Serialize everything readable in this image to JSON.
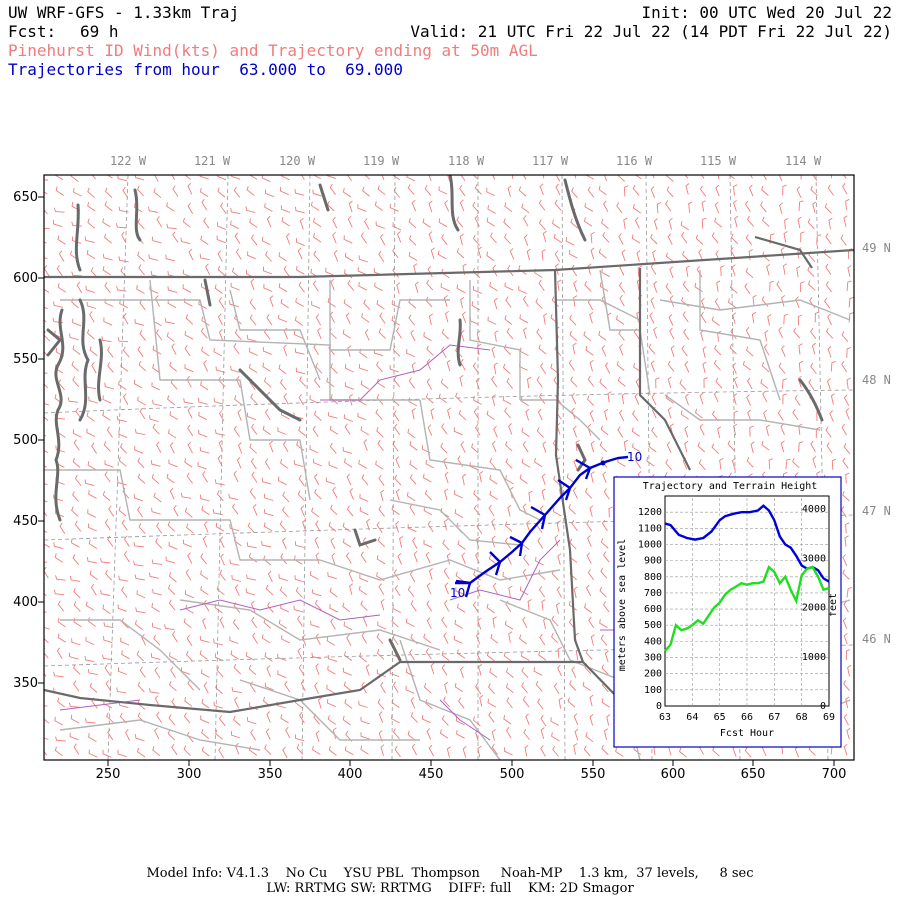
{
  "header": {
    "title": "UW WRF-GFS - 1.33km Traj",
    "init": "Init: 00 UTC Wed 20 Jul 22",
    "fcst_label": "Fcst:",
    "fcst_value": "69 h",
    "valid": "Valid: 21 UTC Fri 22 Jul 22 (14 PDT Fri 22 Jul 22)",
    "subtitle": "Pinehurst ID Wind(kts) and Trajectory ending at 50m AGL",
    "traj_hours": "Trajectories from hour  63.000 to  69.000"
  },
  "map": {
    "lon_labels": [
      "122 W",
      "121 W",
      "120 W",
      "119 W",
      "118 W",
      "117 W",
      "116 W",
      "115 W",
      "114 W"
    ],
    "lat_labels": [
      "49 N",
      "48 N",
      "47 N",
      "46 N"
    ],
    "y_ticks": [
      "650",
      "600",
      "550",
      "500",
      "450",
      "400",
      "350"
    ],
    "x_ticks": [
      "250",
      "300",
      "350",
      "400",
      "450",
      "500",
      "550",
      "600",
      "650",
      "700"
    ],
    "trajectory_start_label": "10",
    "trajectory_end_label": "10",
    "colors": {
      "wind_barb": "#f07c7c",
      "trajectory": "#0000cc",
      "state_border": "#707070",
      "county": "#b0b0b0",
      "river": "#b060c0"
    }
  },
  "inset": {
    "title": "Trajectory and Terrain Height",
    "y_label_left": "meters above sea level",
    "y_label_right": "feet",
    "x_label": "Fcst Hour",
    "left_ticks": [
      "1200",
      "1100",
      "1000",
      "900",
      "800",
      "700",
      "600",
      "500",
      "400",
      "300",
      "200",
      "100",
      "0"
    ],
    "right_ticks": [
      "4000",
      "3000",
      "2000",
      "1000",
      "0"
    ],
    "x_ticks": [
      "63",
      "64",
      "65",
      "66",
      "67",
      "68",
      "69"
    ]
  },
  "chart_data": {
    "type": "line",
    "title": "Trajectory and Terrain Height",
    "xlabel": "Fcst Hour",
    "ylabel": "meters above sea level",
    "xlim": [
      63,
      69
    ],
    "ylim": [
      0,
      1300
    ],
    "series": [
      {
        "name": "",
        "color": "#0000dd",
        "x": [
          63.0,
          63.2,
          63.5,
          63.8,
          64.1,
          64.4,
          64.7,
          65.0,
          65.2,
          65.5,
          65.8,
          66.1,
          66.4,
          66.6,
          66.8,
          67.0,
          67.2,
          67.4,
          67.6,
          67.8,
          68.0,
          68.2,
          68.4,
          68.6,
          68.8,
          69.0
        ],
        "y": [
          1130,
          1120,
          1060,
          1040,
          1030,
          1040,
          1080,
          1150,
          1175,
          1190,
          1200,
          1200,
          1210,
          1240,
          1210,
          1150,
          1050,
          1000,
          980,
          930,
          870,
          850,
          860,
          840,
          790,
          770
        ]
      },
      {
        "name": "",
        "color": "#22dd22",
        "x": [
          63.0,
          63.2,
          63.4,
          63.6,
          63.8,
          64.0,
          64.2,
          64.4,
          64.6,
          64.8,
          65.0,
          65.2,
          65.4,
          65.6,
          65.8,
          66.0,
          66.2,
          66.4,
          66.6,
          66.8,
          67.0,
          67.2,
          67.4,
          67.6,
          67.8,
          68.0,
          68.2,
          68.4,
          68.6,
          68.8,
          69.0
        ],
        "y": [
          340,
          380,
          500,
          470,
          480,
          500,
          530,
          510,
          560,
          610,
          640,
          690,
          720,
          740,
          760,
          750,
          760,
          760,
          770,
          860,
          830,
          760,
          800,
          720,
          650,
          810,
          850,
          860,
          800,
          720,
          730
        ]
      }
    ]
  },
  "footer": {
    "line1": "Model Info: V4.1.3    No Cu    YSU PBL  Thompson     Noah-MP    1.3 km,  37 levels,     8 sec",
    "line2": "LW: RRTMG SW: RRTMG    DIFF: full    KM: 2D Smagor"
  }
}
